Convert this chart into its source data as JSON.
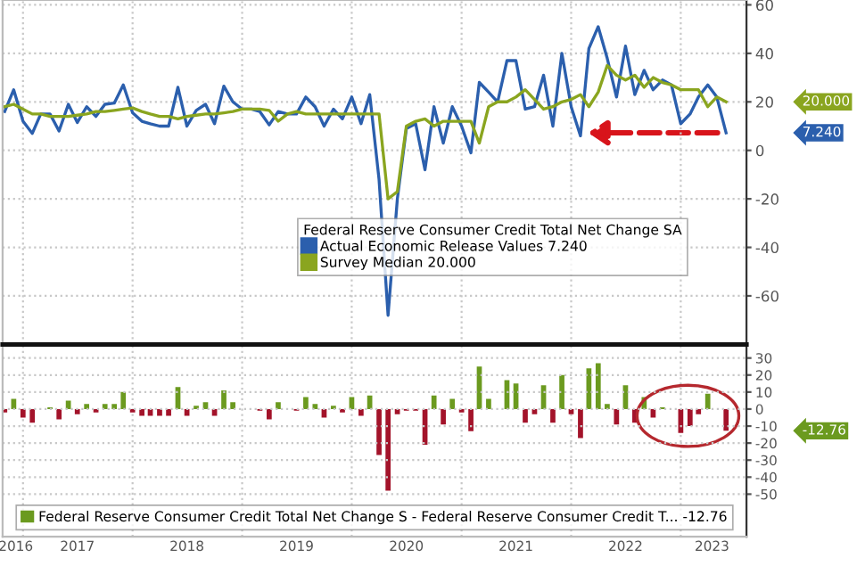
{
  "chart_data": [
    {
      "type": "line",
      "x": [
        "2016-11",
        "2016-12",
        "2017-01",
        "2017-02",
        "2017-03",
        "2017-04",
        "2017-05",
        "2017-06",
        "2017-07",
        "2017-08",
        "2017-09",
        "2017-10",
        "2017-11",
        "2017-12",
        "2018-01",
        "2018-02",
        "2018-03",
        "2018-04",
        "2018-05",
        "2018-06",
        "2018-07",
        "2018-08",
        "2018-09",
        "2018-10",
        "2018-11",
        "2018-12",
        "2019-01",
        "2019-02",
        "2019-03",
        "2019-04",
        "2019-05",
        "2019-06",
        "2019-07",
        "2019-08",
        "2019-09",
        "2019-10",
        "2019-11",
        "2019-12",
        "2020-01",
        "2020-02",
        "2020-03",
        "2020-04",
        "2020-05",
        "2020-06",
        "2020-07",
        "2020-08",
        "2020-09",
        "2020-10",
        "2020-11",
        "2020-12",
        "2021-01",
        "2021-02",
        "2021-03",
        "2021-04",
        "2021-05",
        "2021-06",
        "2021-07",
        "2021-08",
        "2021-09",
        "2021-10",
        "2021-11",
        "2021-12",
        "2022-01",
        "2022-02",
        "2022-03",
        "2022-04",
        "2022-05",
        "2022-06",
        "2022-07",
        "2022-08",
        "2022-09",
        "2022-10",
        "2022-11",
        "2022-12",
        "2023-01",
        "2023-02",
        "2023-03",
        "2023-04",
        "2023-05",
        "2023-06"
      ],
      "series": [
        {
          "name": "Actual Economic Release Values 7.240",
          "color": "#2b5fad",
          "values": [
            16,
            25,
            12,
            7,
            15,
            15,
            8,
            19,
            11.5,
            18,
            14,
            19,
            19.5,
            27,
            15.5,
            12,
            11,
            10,
            10,
            26,
            10,
            16.5,
            19,
            11,
            26.5,
            20,
            17,
            17,
            16,
            10.5,
            16,
            15,
            15,
            22,
            18,
            10,
            17,
            13,
            22,
            11,
            23,
            -12,
            -68,
            -20,
            9,
            11,
            -8,
            18,
            3,
            18,
            10,
            -1,
            28,
            24,
            20,
            37,
            37,
            17,
            18,
            31,
            10,
            40,
            18,
            6,
            42,
            51,
            38,
            22,
            43,
            23,
            33,
            25,
            29,
            27,
            11,
            15,
            22,
            27,
            22,
            7.24
          ]
        },
        {
          "name": "Survey Median 20.000",
          "color": "#8aa51f",
          "values": [
            18,
            19,
            17,
            15,
            15,
            14,
            14,
            14,
            14.5,
            15,
            16,
            16,
            16.5,
            17,
            17.5,
            16,
            15,
            14,
            14,
            13,
            14,
            14.5,
            15,
            15,
            15.5,
            16,
            17,
            17,
            17,
            16.5,
            12,
            15,
            16,
            15,
            15,
            15,
            15,
            15,
            15,
            15,
            15,
            15,
            -20,
            -17,
            10,
            12,
            13,
            10,
            12,
            12,
            12,
            12,
            3,
            18,
            20,
            20,
            22,
            25,
            21,
            17,
            18,
            20,
            21,
            23,
            18,
            24,
            35,
            31,
            29,
            31,
            26,
            30,
            28,
            27,
            25,
            25,
            25,
            18,
            22,
            20
          ]
        }
      ],
      "legend_title": "Federal Reserve Consumer Credit Total Net Change SA",
      "legend": "bottom right",
      "xlim": [
        "2016-10-25",
        "2023-08-08"
      ],
      "xticks": [
        {
          "value": "2017-01-01",
          "label": null
        },
        {
          "value": "2018-01-01",
          "label": null
        },
        {
          "value": "2019-01-01",
          "label": null
        },
        {
          "value": "2020-01-01",
          "label": null
        },
        {
          "value": "2021-01-01",
          "label": null
        },
        {
          "value": "2022-01-01",
          "label": null
        },
        {
          "value": "2023-01-01",
          "label": null
        }
      ],
      "ylim": [
        -80,
        62
      ],
      "yticks": [
        60,
        40,
        20,
        0,
        -20,
        -40,
        -60
      ],
      "tick_labels": "y",
      "grid": true,
      "line_style": "solid",
      "marker": "none",
      "annotations": [
        "7.240",
        "20.000"
      ]
    },
    {
      "type": "bar",
      "x": [
        "2016-11",
        "2016-12",
        "2017-01",
        "2017-02",
        "2017-03",
        "2017-04",
        "2017-05",
        "2017-06",
        "2017-07",
        "2017-08",
        "2017-09",
        "2017-10",
        "2017-11",
        "2017-12",
        "2018-01",
        "2018-02",
        "2018-03",
        "2018-04",
        "2018-05",
        "2018-06",
        "2018-07",
        "2018-08",
        "2018-09",
        "2018-10",
        "2018-11",
        "2018-12",
        "2019-01",
        "2019-02",
        "2019-03",
        "2019-04",
        "2019-05",
        "2019-06",
        "2019-07",
        "2019-08",
        "2019-09",
        "2019-10",
        "2019-11",
        "2019-12",
        "2020-01",
        "2020-02",
        "2020-03",
        "2020-04",
        "2020-05",
        "2020-06",
        "2020-07",
        "2020-08",
        "2020-09",
        "2020-10",
        "2020-11",
        "2020-12",
        "2021-01",
        "2021-02",
        "2021-03",
        "2021-04",
        "2021-05",
        "2021-06",
        "2021-07",
        "2021-08",
        "2021-09",
        "2021-10",
        "2021-11",
        "2021-12",
        "2022-01",
        "2022-02",
        "2022-03",
        "2022-04",
        "2022-05",
        "2022-06",
        "2022-07",
        "2022-08",
        "2022-09",
        "2022-10",
        "2022-11",
        "2022-12",
        "2023-01",
        "2023-02",
        "2023-03",
        "2023-04",
        "2023-05",
        "2023-06"
      ],
      "series": [
        {
          "name": "Federal Reserve Consumer Credit Total Net Change S - Federal Reserve Consumer Credit T... -12.76",
          "color": "#6b9a1f",
          "values": [
            -2,
            6,
            -5,
            -8,
            0,
            1,
            -6,
            5,
            -3,
            3,
            -2,
            3,
            3,
            10,
            -2,
            -4,
            -4,
            -4,
            -4,
            13,
            -4,
            2,
            4,
            -4,
            11,
            4,
            0,
            0,
            -1,
            -6,
            4,
            0,
            -1,
            7,
            3,
            -5,
            2,
            -2,
            7,
            -4,
            8,
            -27,
            -48,
            -3,
            -1,
            -1,
            -21,
            8,
            -9,
            6,
            -2,
            -13,
            25,
            6,
            0,
            17,
            15,
            -8,
            -3,
            14,
            -8,
            20,
            -3,
            -17,
            24,
            27,
            3,
            -9,
            14,
            -8,
            7,
            -5,
            1,
            0,
            -14,
            -10,
            -3,
            9,
            0,
            -12.76
          ],
          "colors": [
            "#a3132a",
            "#6b9a1f",
            "#a3132a",
            "#a3132a",
            "#6b9a1f",
            "#6b9a1f",
            "#a3132a",
            "#6b9a1f",
            "#a3132a",
            "#6b9a1f",
            "#a3132a",
            "#6b9a1f",
            "#6b9a1f",
            "#6b9a1f",
            "#a3132a",
            "#a3132a",
            "#a3132a",
            "#a3132a",
            "#a3132a",
            "#6b9a1f",
            "#a3132a",
            "#6b9a1f",
            "#6b9a1f",
            "#a3132a",
            "#6b9a1f",
            "#6b9a1f",
            "#6b9a1f",
            "#6b9a1f",
            "#a3132a",
            "#a3132a",
            "#6b9a1f",
            "#6b9a1f",
            "#a3132a",
            "#6b9a1f",
            "#6b9a1f",
            "#a3132a",
            "#6b9a1f",
            "#a3132a",
            "#6b9a1f",
            "#a3132a",
            "#6b9a1f",
            "#a3132a",
            "#a3132a",
            "#a3132a",
            "#a3132a",
            "#a3132a",
            "#a3132a",
            "#6b9a1f",
            "#a3132a",
            "#6b9a1f",
            "#a3132a",
            "#a3132a",
            "#6b9a1f",
            "#6b9a1f",
            "#6b9a1f",
            "#6b9a1f",
            "#6b9a1f",
            "#a3132a",
            "#a3132a",
            "#6b9a1f",
            "#a3132a",
            "#6b9a1f",
            "#a3132a",
            "#a3132a",
            "#6b9a1f",
            "#6b9a1f",
            "#6b9a1f",
            "#a3132a",
            "#6b9a1f",
            "#a3132a",
            "#6b9a1f",
            "#a3132a",
            "#6b9a1f",
            "#6b9a1f",
            "#a3132a",
            "#a3132a",
            "#a3132a",
            "#6b9a1f",
            "#6b9a1f",
            "#a3132a"
          ]
        }
      ],
      "legend": "bottom",
      "xlim": [
        "2016-10-25",
        "2023-08-08"
      ],
      "xticks": [
        {
          "value": "2016-12-08",
          "label": "2016"
        },
        {
          "value": "2017-07-01",
          "label": "2017"
        },
        {
          "value": "2018-07-01",
          "label": "2018"
        },
        {
          "value": "2019-07-01",
          "label": "2019"
        },
        {
          "value": "2020-07-01",
          "label": "2020"
        },
        {
          "value": "2021-07-01",
          "label": "2021"
        },
        {
          "value": "2022-07-01",
          "label": "2022"
        },
        {
          "value": "2023-04-15",
          "label": "2023"
        }
      ],
      "ylim": [
        -75,
        38
      ],
      "yticks": [
        30,
        20,
        10,
        0,
        -10,
        -20,
        -30,
        -40,
        -50
      ],
      "grid": true,
      "annotations": [
        "-12.76"
      ]
    }
  ]
}
